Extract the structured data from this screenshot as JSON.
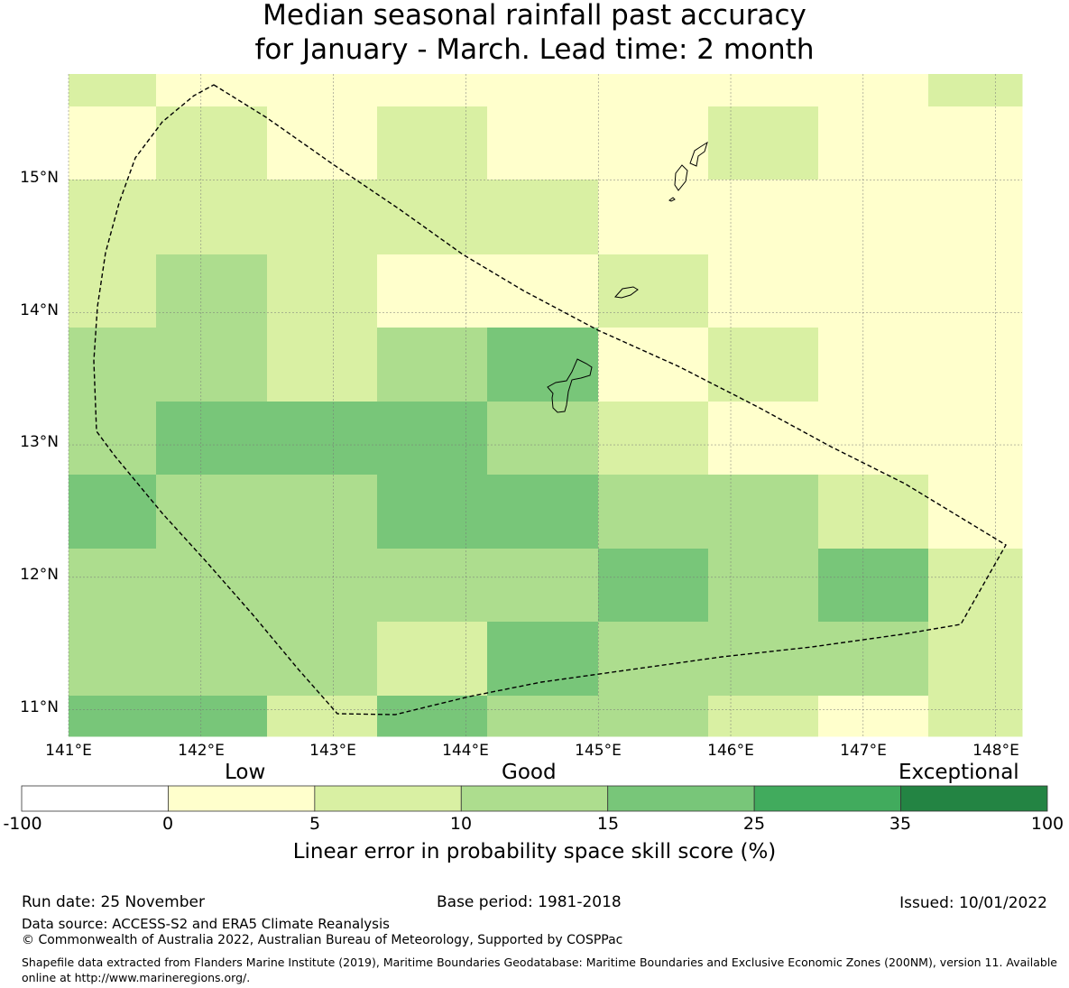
{
  "title": {
    "line1": "Median seasonal rainfall past accuracy",
    "line2": "for January - March. Lead time: 2 month"
  },
  "map": {
    "lat_labels": [
      "15°N",
      "14°N",
      "13°N",
      "12°N",
      "11°N"
    ],
    "lon_labels": [
      "141°E",
      "142°E",
      "143°E",
      "144°E",
      "145°E",
      "146°E",
      "147°E",
      "148°E"
    ],
    "lat_range": [
      10.8,
      15.8
    ],
    "lon_range": [
      141.0,
      148.2
    ],
    "score_grid_rows_north_to_south": [
      [
        7,
        2,
        2,
        2,
        2,
        2,
        2,
        2,
        7
      ],
      [
        0,
        7,
        2,
        7,
        2,
        2,
        7,
        2,
        2
      ],
      [
        7,
        7,
        7,
        7,
        7,
        2,
        2,
        2,
        2
      ],
      [
        7,
        12,
        7,
        2,
        2,
        7,
        2,
        2,
        2
      ],
      [
        12,
        12,
        7,
        12,
        20,
        2,
        7,
        2,
        2
      ],
      [
        12,
        20,
        20,
        20,
        12,
        7,
        2,
        2,
        2
      ],
      [
        20,
        12,
        12,
        20,
        20,
        12,
        12,
        7,
        2
      ],
      [
        12,
        12,
        12,
        12,
        12,
        20,
        12,
        20,
        7
      ],
      [
        12,
        12,
        12,
        7,
        20,
        12,
        12,
        12,
        7
      ],
      [
        20,
        20,
        7,
        20,
        12,
        12,
        7,
        2,
        7
      ]
    ]
  },
  "colorbar": {
    "categories": {
      "low": "Low",
      "good": "Good",
      "exceptional": "Exceptional"
    },
    "ticks": [
      "-100",
      "0",
      "5",
      "10",
      "15",
      "25",
      "35",
      "100"
    ],
    "colors": [
      "#ffffff",
      "#ffffcc",
      "#d9f0a3",
      "#addd8e",
      "#78c679",
      "#41ab5d",
      "#238443"
    ],
    "title": "Linear error in probability space skill score (%)"
  },
  "footer": {
    "run_date": "Run date: 25 November",
    "base_period": "Base period: 1981-2018",
    "issued": "Issued: 10/01/2022",
    "data_source": "Data source: ACCESS-S2 and ERA5 Climate Reanalysis",
    "copyright": "© Commonwealth of Australia 2022, Australian Bureau of Meteorology, Supported by COSPPac",
    "shapefile_note": "Shapefile data extracted from Flanders Marine Institute (2019), Maritime Boundaries Geodatabase: Maritime Boundaries and Exclusive Economic Zones (200NM), version 11. Available online at http://www.marineregions.org/."
  }
}
